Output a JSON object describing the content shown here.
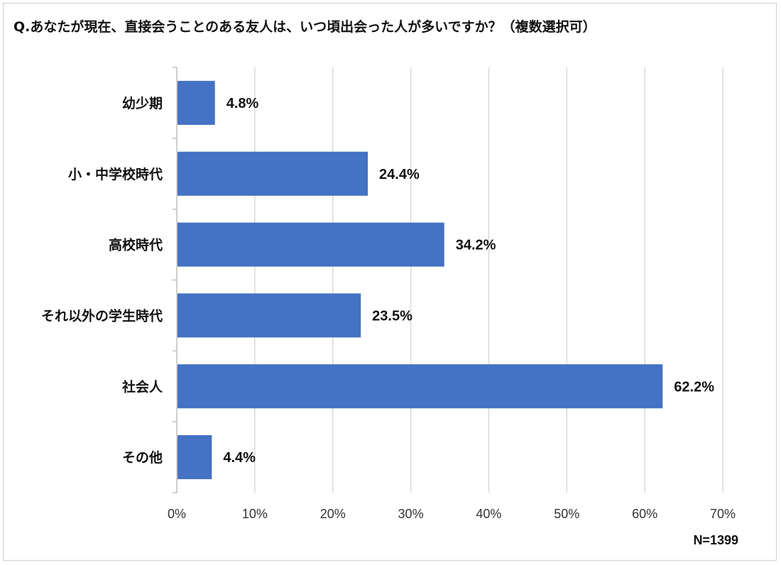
{
  "chart_data": {
    "type": "bar",
    "orientation": "horizontal",
    "title": "Q.あなたが現在、直接会うことのある友人は、いつ頃出会った人が多いですか？（複数選択可）",
    "categories": [
      "幼少期",
      "小・中学校時代",
      "高校時代",
      "それ以外の学生時代",
      "社会人",
      "その他"
    ],
    "values": [
      4.8,
      24.4,
      34.2,
      23.5,
      62.2,
      4.4
    ],
    "value_labels": [
      "4.8%",
      "24.4%",
      "34.2%",
      "23.5%",
      "62.2%",
      "4.4%"
    ],
    "xlim": [
      0,
      70
    ],
    "x_ticks": [
      "0%",
      "10%",
      "20%",
      "30%",
      "40%",
      "50%",
      "60%",
      "70%"
    ],
    "grid": true,
    "bar_color": "#4472C4",
    "note": "N=1399"
  }
}
